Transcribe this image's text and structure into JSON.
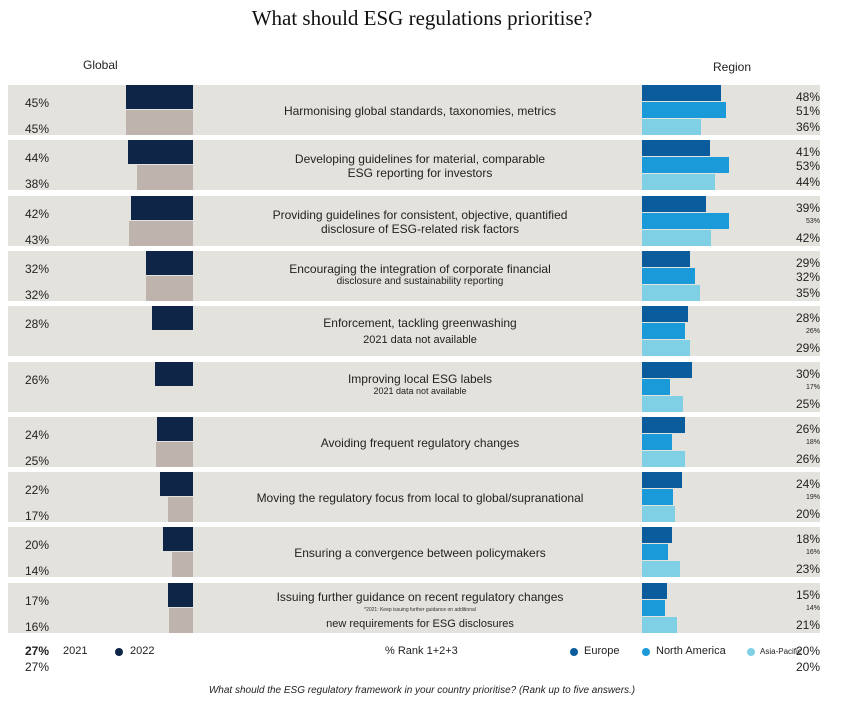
{
  "title": "What should ESG regulations prioritise?",
  "headers": {
    "global": "Global",
    "region": "Region"
  },
  "chart_data": {
    "type": "bar",
    "title": "What should ESG regulations prioritise?",
    "xlabel": "% Rank 1+2+3",
    "categories": [
      "Harmonising global standards, taxonomies, metrics",
      "Developing guidelines for material, comparable ESG reporting for investors",
      "Providing guidelines for consistent, objective, quantified disclosure of ESG-related risk factors",
      "Encouraging the integration of corporate financial disclosure and sustainability reporting",
      "Enforcement, tackling greenwashing",
      "Improving local ESG labels",
      "Avoiding frequent regulatory changes",
      "Moving the regulatory focus from local to global/supranational",
      "Ensuring a convergence between policymakers",
      "Issuing further guidance on recent regulatory changes"
    ],
    "series": [
      {
        "name": "2022",
        "values": [
          45,
          44,
          42,
          32,
          28,
          26,
          24,
          22,
          20,
          17
        ]
      },
      {
        "name": "2021",
        "values": [
          45,
          38,
          43,
          32,
          null,
          null,
          25,
          17,
          14,
          16
        ]
      },
      {
        "name": "Europe",
        "values": [
          48,
          41,
          39,
          29,
          28,
          30,
          26,
          24,
          18,
          15
        ]
      },
      {
        "name": "North America",
        "values": [
          51,
          53,
          53,
          32,
          26,
          17,
          18,
          19,
          16,
          14
        ]
      },
      {
        "name": "Asia-Pacific",
        "values": [
          36,
          44,
          42,
          35,
          29,
          25,
          26,
          20,
          23,
          21
        ]
      }
    ]
  },
  "rows": [
    {
      "g22": "45%",
      "g21": "45%",
      "line1": "Harmonising global standards, taxonomies, metrics",
      "line2": "",
      "note": "",
      "eu": "48%",
      "na": "51%",
      "ap": "36%"
    },
    {
      "g22": "44%",
      "g21": "38%",
      "line1": "Developing guidelines for material, comparable",
      "line2": "ESG reporting for investors",
      "note": "",
      "eu": "41%",
      "na": "53%",
      "ap": "44%"
    },
    {
      "g22": "42%",
      "g21": "43%",
      "line1": "Providing guidelines for consistent, objective, quantified",
      "line2": "disclosure of ESG-related risk factors",
      "note": "",
      "eu": "39%",
      "na": "53%",
      "ap": "42%"
    },
    {
      "g22": "32%",
      "g21": "32%",
      "line1": "Encouraging the integration of corporate financial",
      "line2": "disclosure and sustainability reporting",
      "note": "",
      "eu": "29%",
      "na": "32%",
      "ap": "35%"
    },
    {
      "g22": "28%",
      "g21": "",
      "line1": "Enforcement, tackling greenwashing",
      "line2": "2021 data not available",
      "note": "",
      "eu": "28%",
      "na": "26%",
      "ap": "29%"
    },
    {
      "g22": "26%",
      "g21": "",
      "line1": "Improving local ESG labels",
      "line2": "2021 data not available",
      "note": "",
      "eu": "30%",
      "na": "17%",
      "ap": "25%"
    },
    {
      "g22": "24%",
      "g21": "25%",
      "line1": "Avoiding frequent regulatory changes",
      "line2": "",
      "note": "",
      "eu": "26%",
      "na": "18%",
      "ap": "26%"
    },
    {
      "g22": "22%",
      "g21": "17%",
      "line1": "Moving the regulatory focus from local to global/supranational",
      "line2": "",
      "note": "",
      "eu": "24%",
      "na": "19%",
      "ap": "20%"
    },
    {
      "g22": "20%",
      "g21": "14%",
      "line1": "Ensuring a convergence between policymakers",
      "line2": "",
      "note": "",
      "eu": "18%",
      "na": "16%",
      "ap": "23%"
    },
    {
      "g22": "17%",
      "g21": "16%",
      "line1": "Issuing further guidance on recent regulatory changes",
      "line2": "new requirements for ESG disclosures",
      "note": "*2021: Keep issuing further guidance on additional",
      "eu": "15%",
      "na": "14%",
      "ap": "21%"
    }
  ],
  "extra": {
    "left_a": "27%",
    "left_b": "27%",
    "right_a": "20%",
    "right_b": "20%"
  },
  "legend": {
    "y2021": "2021",
    "y2022": "2022",
    "xlabel": "% Rank 1+2+3",
    "europe": "Europe",
    "north_america": "North America",
    "asia_pacific": "Asia-Pacific"
  },
  "footnote": "What should the ESG regulatory framework in your country prioritise? (Rank up to five answers.)",
  "colors": {
    "y2022": "#0f2548",
    "y2021": "#bfb3ae",
    "europe": "#0a5c9c",
    "north_america": "#1a9ad9",
    "asia_pacific": "#7fd0e4",
    "row_bg": "#e4e2dc"
  }
}
